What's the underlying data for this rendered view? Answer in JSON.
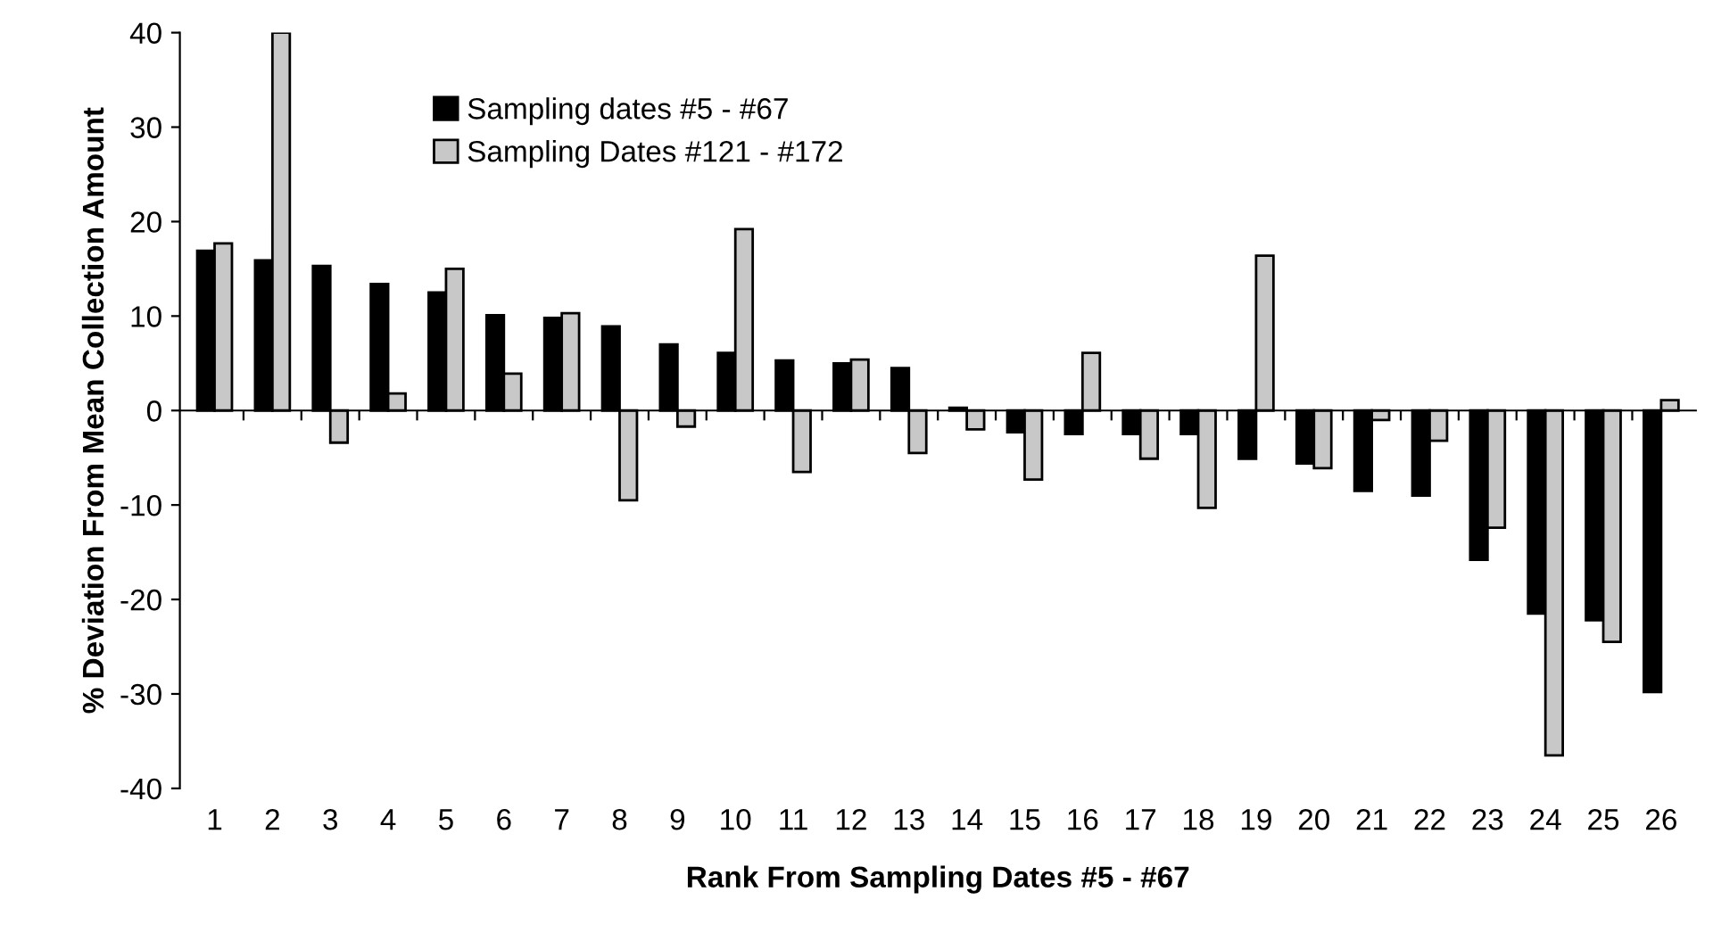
{
  "chart_data": {
    "type": "bar",
    "xlabel": "Rank From Sampling Dates #5 - #67",
    "ylabel": "% Deviation From Mean Collection Amount",
    "categories": [
      "1",
      "2",
      "3",
      "4",
      "5",
      "6",
      "7",
      "8",
      "9",
      "10",
      "11",
      "12",
      "13",
      "14",
      "15",
      "16",
      "17",
      "18",
      "19",
      "20",
      "21",
      "22",
      "23",
      "24",
      "25",
      "26"
    ],
    "series": [
      {
        "name": "Sampling dates #5 - #67",
        "color": "#000000",
        "values": [
          16.9,
          15.9,
          15.3,
          13.4,
          12.5,
          10.1,
          9.8,
          8.9,
          7.0,
          6.1,
          5.3,
          5.0,
          4.5,
          0.3,
          -2.3,
          -2.5,
          -2.5,
          -2.5,
          -5.1,
          -5.6,
          -8.5,
          -9.0,
          -15.8,
          -21.5,
          -22.2,
          -29.8
        ]
      },
      {
        "name": "Sampling Dates #121 - #172",
        "color": "#c8c8c8",
        "values": [
          17.7,
          40,
          -3.4,
          1.8,
          15,
          3.9,
          10.3,
          -9.5,
          -1.7,
          19.2,
          -6.5,
          5.4,
          -4.5,
          -2.0,
          -7.3,
          6.1,
          -5.1,
          -10.3,
          16.4,
          -6.1,
          -1.0,
          -3.2,
          -12.4,
          -36.5,
          -24.5,
          1.1
        ]
      }
    ],
    "ylim": [
      -40,
      40
    ],
    "yticks": [
      -40,
      -30,
      -20,
      -10,
      0,
      10,
      20,
      30,
      40
    ],
    "legend": "top left"
  }
}
